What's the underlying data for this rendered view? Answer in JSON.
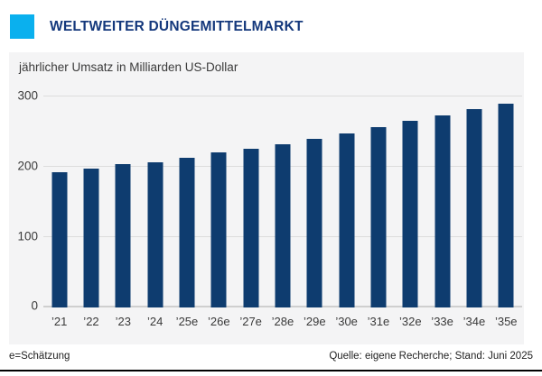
{
  "header": {
    "title": "WELTWEITER DÜNGEMITTELMARKT",
    "accent_color": "#0ab0ee",
    "title_color": "#14387c"
  },
  "chart_data": {
    "type": "bar",
    "title": "jährlicher Umsatz in Milliarden US-Dollar",
    "categories": [
      "’21",
      "’22",
      "’23",
      "’24",
      "’25e",
      "’26e",
      "’27e",
      "’28e",
      "’29e",
      "’30e",
      "’31e",
      "’32e",
      "’33e",
      "’34e",
      "’35e"
    ],
    "values": [
      192,
      197,
      204,
      207,
      213,
      221,
      226,
      232,
      240,
      248,
      257,
      265,
      273,
      282,
      290
    ],
    "ylabel": "Milliarden US-Dollar",
    "yticks": [
      0,
      100,
      200,
      300
    ],
    "ylim": [
      0,
      363
    ],
    "grid": true,
    "legend": false,
    "bar_color": "#0e3c6f",
    "panel_background": "#f4f4f5",
    "gridline_color": "#dcdcdc"
  },
  "footer": {
    "note": "e=Schätzung",
    "source": "Quelle: eigene Recherche; Stand: Juni 2025"
  }
}
